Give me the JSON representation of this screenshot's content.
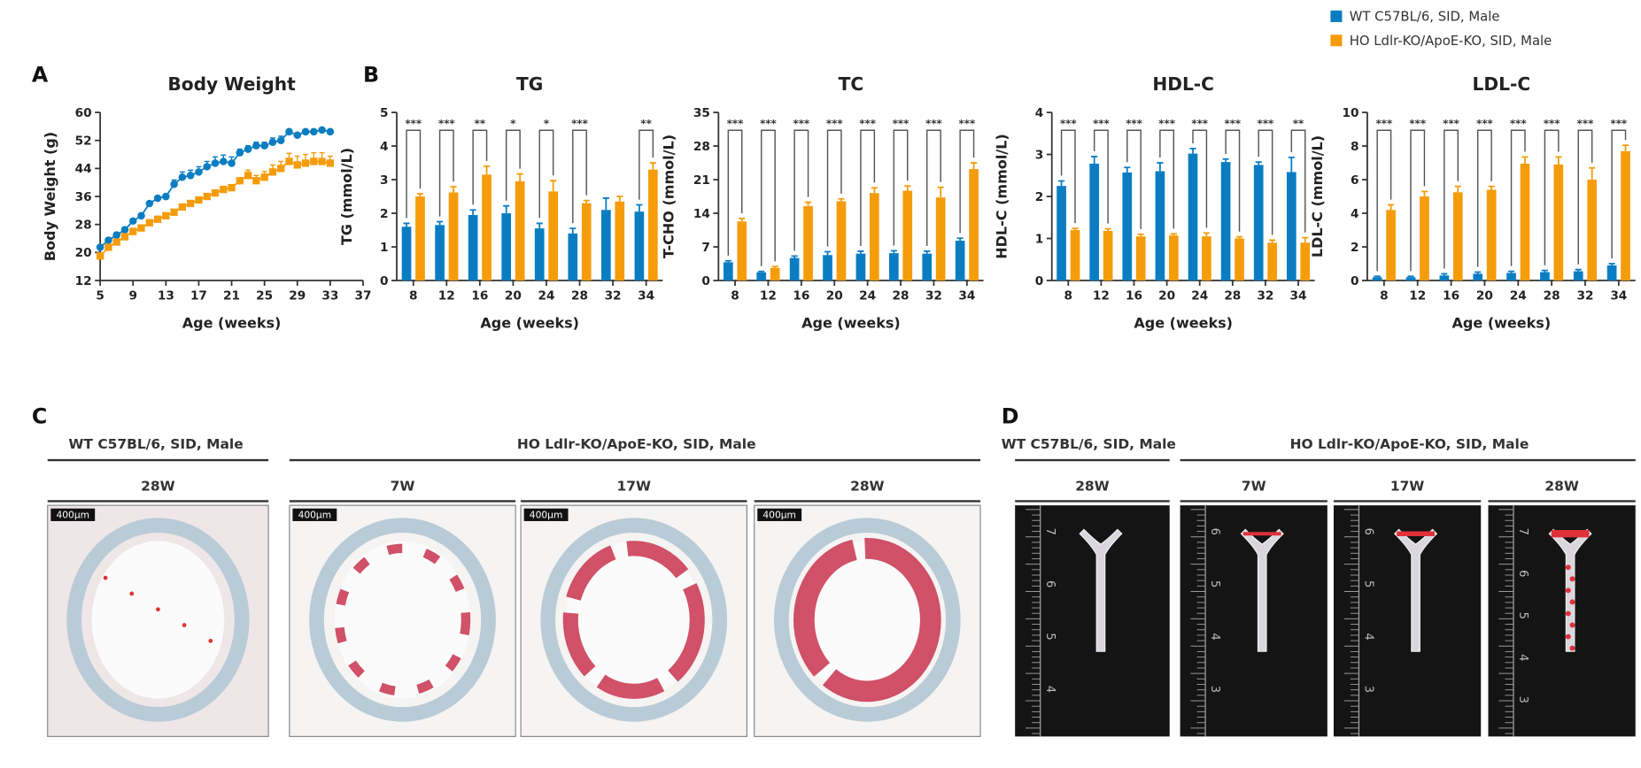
{
  "colors": {
    "wt": "#0a7dc2",
    "ho": "#f59c0a",
    "axis": "#333333",
    "bracket": "#555555"
  },
  "legend": [
    {
      "label": "WT C57BL/6, SID, Male",
      "color": "#0a7dc2"
    },
    {
      "label": "HO Ldlr-KO/ApoE-KO, SID, Male",
      "color": "#f59c0a"
    }
  ],
  "panel_letters": {
    "a": "A",
    "b": "B",
    "c": "C",
    "d": "D"
  },
  "chart_data": [
    {
      "id": "body-weight",
      "type": "line",
      "title": "Body Weight",
      "xlabel": "Age (weeks)",
      "ylabel": "Body Weight (g)",
      "xlim": [
        5,
        37
      ],
      "xticks": [
        5,
        9,
        13,
        17,
        21,
        25,
        29,
        33,
        37
      ],
      "ylim": [
        12,
        60
      ],
      "yticks": [
        12,
        20,
        28,
        36,
        44,
        52,
        60
      ],
      "x": [
        5,
        6,
        7,
        8,
        9,
        10,
        11,
        12,
        13,
        14,
        15,
        16,
        17,
        18,
        19,
        20,
        21,
        22,
        23,
        24,
        25,
        26,
        27,
        28,
        29,
        30,
        31,
        32,
        33
      ],
      "series": [
        {
          "name": "WT C57BL/6, SID, Male",
          "marker": "circle",
          "values": [
            21.5,
            23.5,
            25,
            26.5,
            29,
            30.5,
            34,
            35.5,
            36,
            39.5,
            41.5,
            42,
            43,
            44.5,
            45.5,
            46,
            45.5,
            48.5,
            49.5,
            50.5,
            50.5,
            51.5,
            52,
            54.5,
            53.5,
            54.5,
            54.5,
            55,
            54.5
          ],
          "errors": [
            0.5,
            0.5,
            0.5,
            0.5,
            0.5,
            0.5,
            0.6,
            0.6,
            0.6,
            1.2,
            1.5,
            1.5,
            1.5,
            1.5,
            1.8,
            1.8,
            1.8,
            1,
            1,
            1,
            1,
            1.2,
            1.2,
            0.5,
            0.5,
            0.5,
            0.5,
            0.4,
            0.4
          ]
        },
        {
          "name": "HO Ldlr-KO/ApoE-KO, SID, Male",
          "marker": "square",
          "values": [
            19,
            21.5,
            23,
            24.5,
            26,
            27,
            28.5,
            29.5,
            30.5,
            31.5,
            33,
            34,
            35,
            36,
            37,
            38,
            38.5,
            40.5,
            42,
            40.5,
            41.5,
            43,
            44,
            46,
            45,
            45.5,
            46,
            46,
            45.5
          ],
          "errors": [
            0.4,
            0.4,
            0.4,
            0.4,
            0.4,
            0.4,
            0.4,
            0.4,
            0.4,
            0.4,
            0.5,
            0.5,
            0.5,
            0.5,
            0.6,
            0.6,
            0.6,
            0.8,
            1.5,
            1.5,
            1.6,
            2,
            2,
            2.3,
            2.5,
            2.5,
            2.5,
            2.5,
            2
          ]
        }
      ]
    },
    {
      "id": "tg",
      "type": "bar",
      "title": "TG",
      "xlabel": "Age (weeks)",
      "ylabel": "TG (mmol/L)",
      "categories": [
        "8",
        "12",
        "16",
        "20",
        "24",
        "28",
        "32",
        "34"
      ],
      "ylim": [
        0,
        5
      ],
      "yticks": [
        0,
        1,
        2,
        3,
        4,
        5
      ],
      "series": [
        {
          "name": "WT C57BL/6, SID, Male",
          "values": [
            1.6,
            1.65,
            1.95,
            2.0,
            1.55,
            1.4,
            2.1,
            2.05
          ],
          "errors": [
            0.1,
            0.1,
            0.15,
            0.22,
            0.15,
            0.15,
            0.35,
            0.2
          ]
        },
        {
          "name": "HO Ldlr-KO/ApoE-KO, SID, Male",
          "values": [
            2.5,
            2.62,
            3.15,
            2.95,
            2.65,
            2.3,
            2.35,
            3.3
          ],
          "errors": [
            0.08,
            0.17,
            0.25,
            0.22,
            0.32,
            0.08,
            0.15,
            0.2
          ]
        }
      ],
      "significance": [
        "***",
        "***",
        "**",
        "*",
        "*",
        "***",
        "",
        "**"
      ]
    },
    {
      "id": "tc",
      "type": "bar",
      "title": "TC",
      "xlabel": "Age (weeks)",
      "ylabel": "T-CHO (mmol/L)",
      "categories": [
        "8",
        "12",
        "16",
        "20",
        "24",
        "28",
        "32",
        "34"
      ],
      "ylim": [
        0,
        35
      ],
      "yticks": [
        0,
        7,
        14,
        21,
        28,
        35
      ],
      "series": [
        {
          "name": "WT C57BL/6, SID, Male",
          "values": [
            3.8,
            1.7,
            4.7,
            5.3,
            5.6,
            5.7,
            5.6,
            8.3
          ],
          "errors": [
            0.3,
            0.2,
            0.4,
            0.7,
            0.5,
            0.5,
            0.5,
            0.5
          ]
        },
        {
          "name": "HO Ldlr-KO/ApoE-KO, SID, Male",
          "values": [
            12.3,
            2.6,
            15.5,
            16.5,
            18.2,
            18.7,
            17.3,
            23.2
          ],
          "errors": [
            0.6,
            0.3,
            0.8,
            0.5,
            1.1,
            1.0,
            2.1,
            1.3
          ]
        }
      ],
      "significance": [
        "***",
        "***",
        "***",
        "***",
        "***",
        "***",
        "***",
        "***"
      ]
    },
    {
      "id": "hdl-c",
      "type": "bar",
      "title": "HDL-C",
      "xlabel": "Age (weeks)",
      "ylabel": "HDL-C (mmol/L)",
      "categories": [
        "8",
        "12",
        "16",
        "20",
        "24",
        "28",
        "32",
        "34"
      ],
      "ylim": [
        0,
        4
      ],
      "yticks": [
        0,
        1,
        2,
        3,
        4
      ],
      "series": [
        {
          "name": "WT C57BL/6, SID, Male",
          "values": [
            2.25,
            2.78,
            2.57,
            2.6,
            3.02,
            2.82,
            2.75,
            2.58
          ],
          "errors": [
            0.12,
            0.17,
            0.12,
            0.2,
            0.12,
            0.07,
            0.07,
            0.35
          ]
        },
        {
          "name": "HO Ldlr-KO/ApoE-KO, SID, Male",
          "values": [
            1.2,
            1.18,
            1.05,
            1.07,
            1.05,
            1.0,
            0.9,
            0.9
          ],
          "errors": [
            0.04,
            0.05,
            0.05,
            0.04,
            0.08,
            0.04,
            0.06,
            0.12
          ]
        }
      ],
      "significance": [
        "***",
        "***",
        "***",
        "***",
        "***",
        "***",
        "***",
        "**"
      ]
    },
    {
      "id": "ldl-c",
      "type": "bar",
      "title": "LDL-C",
      "xlabel": "Age (weeks)",
      "ylabel": "LDL-C (mmol/L)",
      "categories": [
        "8",
        "12",
        "16",
        "20",
        "24",
        "28",
        "32",
        "34"
      ],
      "ylim": [
        0,
        10
      ],
      "yticks": [
        0,
        2,
        4,
        6,
        8,
        10
      ],
      "series": [
        {
          "name": "WT C57BL/6, SID, Male",
          "values": [
            0.2,
            0.2,
            0.3,
            0.4,
            0.45,
            0.5,
            0.55,
            0.9
          ],
          "errors": [
            0.05,
            0.05,
            0.1,
            0.1,
            0.1,
            0.1,
            0.1,
            0.1
          ]
        },
        {
          "name": "HO Ldlr-KO/ApoE-KO, SID, Male",
          "values": [
            4.2,
            5.0,
            5.25,
            5.4,
            6.95,
            6.9,
            6.0,
            7.7
          ],
          "errors": [
            0.3,
            0.3,
            0.35,
            0.2,
            0.4,
            0.45,
            0.7,
            0.35
          ]
        }
      ],
      "significance": [
        "***",
        "***",
        "***",
        "***",
        "***",
        "***",
        "***",
        "***"
      ]
    }
  ],
  "panel_c": {
    "group_wt": "WT C57BL/6, SID, Male",
    "group_ho": "HO Ldlr-KO/ApoE-KO, SID, Male",
    "images": [
      {
        "age": "28W",
        "scale_bar": "400μm",
        "lesion": "minimal"
      },
      {
        "age": "7W",
        "scale_bar": "400μm",
        "lesion": "mild"
      },
      {
        "age": "17W",
        "scale_bar": "400μm",
        "lesion": "moderate"
      },
      {
        "age": "28W",
        "scale_bar": "400μm",
        "lesion": "severe"
      }
    ]
  },
  "panel_d": {
    "group_wt": "WT C57BL/6, SID, Male",
    "group_ho": "HO Ldlr-KO/ApoE-KO, SID, Male",
    "images": [
      {
        "age": "28W",
        "ruler_labels": [
          "7",
          "6",
          "5",
          "4"
        ],
        "lesion": "none"
      },
      {
        "age": "7W",
        "ruler_labels": [
          "6",
          "5",
          "4",
          "3"
        ],
        "lesion": "minimal"
      },
      {
        "age": "17W",
        "ruler_labels": [
          "6",
          "5",
          "4",
          "3"
        ],
        "lesion": "moderate"
      },
      {
        "age": "28W",
        "ruler_labels": [
          "7",
          "6",
          "5",
          "4",
          "3"
        ],
        "lesion": "severe"
      }
    ]
  }
}
